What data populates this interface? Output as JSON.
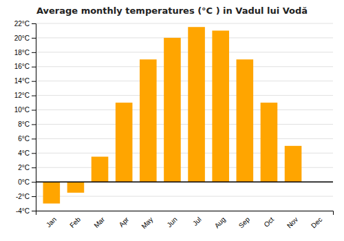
{
  "chart_data": {
    "type": "bar",
    "title": "Average monthly temperatures (°C ) in Vadul lui Vodă",
    "categories": [
      "Jan",
      "Feb",
      "Mar",
      "Apr",
      "May",
      "Jun",
      "Jul",
      "Aug",
      "Sep",
      "Oct",
      "Nov",
      "Dec"
    ],
    "values": [
      -3.0,
      -1.5,
      3.5,
      11.0,
      17.0,
      20.0,
      21.5,
      21.0,
      17.0,
      11.0,
      5.0,
      0.0
    ],
    "color": "#FFA500",
    "ylim": [
      -4,
      22
    ],
    "yticks": [
      {
        "value": -4,
        "label": "-4°C"
      },
      {
        "value": -2,
        "label": "-2°C"
      },
      {
        "value": 0,
        "label": "0°C"
      },
      {
        "value": 2,
        "label": "2°C"
      },
      {
        "value": 4,
        "label": "4°C"
      },
      {
        "value": 6,
        "label": "6°C"
      },
      {
        "value": 8,
        "label": "8°C"
      },
      {
        "value": 10,
        "label": "10°C"
      },
      {
        "value": 12,
        "label": "12°C"
      },
      {
        "value": 14,
        "label": "14°C"
      },
      {
        "value": 16,
        "label": "16°C"
      },
      {
        "value": 18,
        "label": "18°C"
      },
      {
        "value": 20,
        "label": "20°C"
      },
      {
        "value": 22,
        "label": "22°C"
      }
    ],
    "grid": true
  }
}
